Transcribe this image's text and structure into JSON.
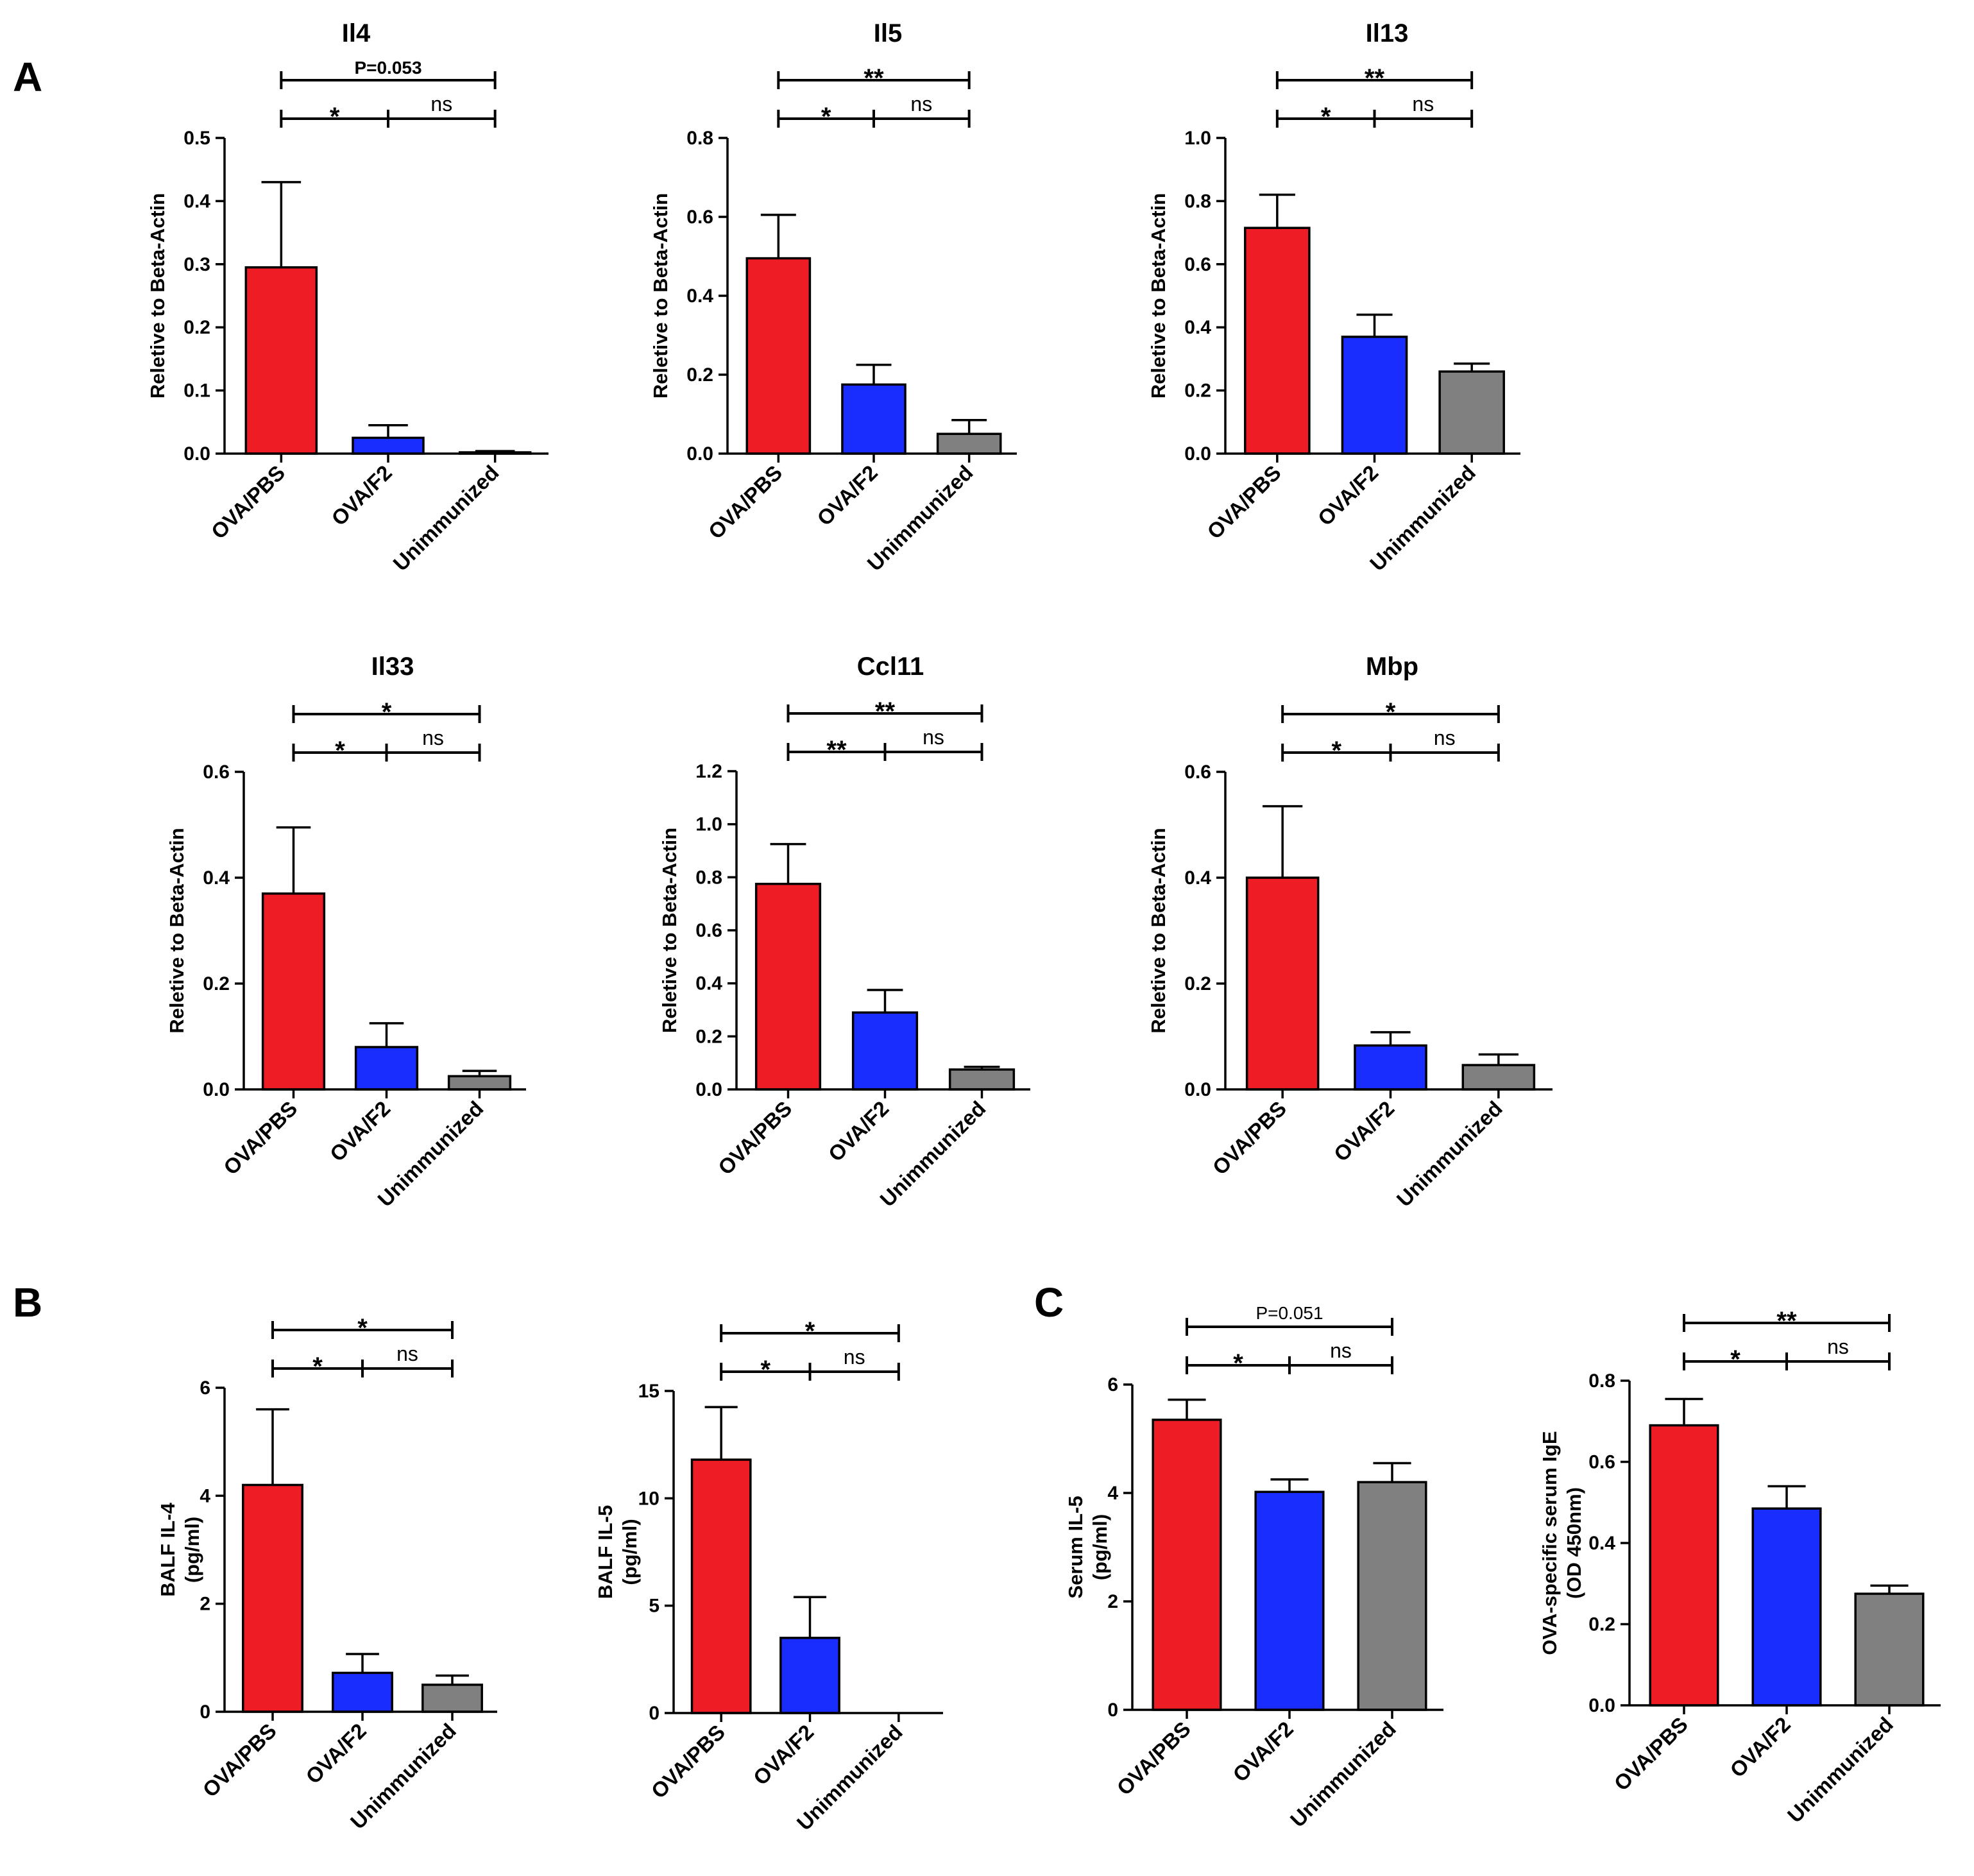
{
  "panel_labels": [
    "A",
    "B",
    "C"
  ],
  "colors": {
    "OVA/PBS": "#ee1c25",
    "OVA/F2": "#1a2dff",
    "Unimmunized": "#808080"
  },
  "chart_data": [
    {
      "type": "bar",
      "panel": "A",
      "title": "Il4",
      "ylabel": "Reletive to Beta-Actin",
      "categories": [
        "OVA/PBS",
        "OVA/F2",
        "Unimmunized"
      ],
      "values": [
        0.295,
        0.025,
        0.002
      ],
      "errors": [
        0.135,
        0.02,
        0.002
      ],
      "ylim": [
        0,
        0.5
      ],
      "yticks": [
        "0.0",
        "0.1",
        "0.2",
        "0.3",
        "0.4",
        "0.5"
      ],
      "comparisons": [
        {
          "label": "P=0.053",
          "type": "p",
          "from": 0,
          "to": 2,
          "level": 2
        },
        {
          "label": "*",
          "type": "sig",
          "from": 0,
          "to": 1,
          "level": 1
        },
        {
          "label": "ns",
          "type": "ns",
          "from": 1,
          "to": 2,
          "level": 1
        }
      ]
    },
    {
      "type": "bar",
      "panel": "A",
      "title": "Il5",
      "ylabel": "Reletive to Beta-Actin",
      "categories": [
        "OVA/PBS",
        "OVA/F2",
        "Unimmunized"
      ],
      "values": [
        0.495,
        0.175,
        0.05
      ],
      "errors": [
        0.11,
        0.05,
        0.035
      ],
      "ylim": [
        0,
        0.8
      ],
      "yticks": [
        "0.0",
        "0.2",
        "0.4",
        "0.6",
        "0.8"
      ],
      "comparisons": [
        {
          "label": "**",
          "type": "sig",
          "from": 0,
          "to": 2,
          "level": 2
        },
        {
          "label": "*",
          "type": "sig",
          "from": 0,
          "to": 1,
          "level": 1
        },
        {
          "label": "ns",
          "type": "ns",
          "from": 1,
          "to": 2,
          "level": 1
        }
      ]
    },
    {
      "type": "bar",
      "panel": "A",
      "title": "Il13",
      "ylabel": "Reletive to Beta-Actin",
      "categories": [
        "OVA/PBS",
        "OVA/F2",
        "Unimmunized"
      ],
      "values": [
        0.715,
        0.37,
        0.26
      ],
      "errors": [
        0.105,
        0.07,
        0.025
      ],
      "ylim": [
        0,
        1.0
      ],
      "yticks": [
        "0.0",
        "0.2",
        "0.4",
        "0.6",
        "0.8",
        "1.0"
      ],
      "comparisons": [
        {
          "label": "**",
          "type": "sig",
          "from": 0,
          "to": 2,
          "level": 2
        },
        {
          "label": "*",
          "type": "sig",
          "from": 0,
          "to": 1,
          "level": 1
        },
        {
          "label": "ns",
          "type": "ns",
          "from": 1,
          "to": 2,
          "level": 1
        }
      ]
    },
    {
      "type": "bar",
      "panel": "A",
      "title": "Il33",
      "ylabel": "Reletive to Beta-Actin",
      "categories": [
        "OVA/PBS",
        "OVA/F2",
        "Unimmunized"
      ],
      "values": [
        0.37,
        0.08,
        0.025
      ],
      "errors": [
        0.125,
        0.045,
        0.01
      ],
      "ylim": [
        0,
        0.6
      ],
      "yticks": [
        "0.0",
        "0.2",
        "0.4",
        "0.6"
      ],
      "comparisons": [
        {
          "label": "*",
          "type": "sig",
          "from": 0,
          "to": 2,
          "level": 2
        },
        {
          "label": "*",
          "type": "sig",
          "from": 0,
          "to": 1,
          "level": 1
        },
        {
          "label": "ns",
          "type": "ns",
          "from": 1,
          "to": 2,
          "level": 1
        }
      ]
    },
    {
      "type": "bar",
      "panel": "A",
      "title": "Ccl11",
      "ylabel": "Reletive to Beta-Actin",
      "categories": [
        "OVA/PBS",
        "OVA/F2",
        "Unimmunized"
      ],
      "values": [
        0.775,
        0.29,
        0.075
      ],
      "errors": [
        0.15,
        0.085,
        0.01
      ],
      "ylim": [
        0,
        1.2
      ],
      "yticks": [
        "0.0",
        "0.2",
        "0.4",
        "0.6",
        "0.8",
        "1.0",
        "1.2"
      ],
      "comparisons": [
        {
          "label": "**",
          "type": "sig",
          "from": 0,
          "to": 2,
          "level": 2
        },
        {
          "label": "**",
          "type": "sig",
          "from": 0,
          "to": 1,
          "level": 1
        },
        {
          "label": "ns",
          "type": "ns",
          "from": 1,
          "to": 2,
          "level": 1
        }
      ]
    },
    {
      "type": "bar",
      "panel": "A",
      "title": "Mbp",
      "ylabel": "Reletive to Beta-Actin",
      "categories": [
        "OVA/PBS",
        "OVA/F2",
        "Unimmunized"
      ],
      "values": [
        0.4,
        0.083,
        0.046
      ],
      "errors": [
        0.135,
        0.025,
        0.02
      ],
      "ylim": [
        0,
        0.6
      ],
      "yticks": [
        "0.0",
        "0.2",
        "0.4",
        "0.6"
      ],
      "comparisons": [
        {
          "label": "*",
          "type": "sig",
          "from": 0,
          "to": 2,
          "level": 2
        },
        {
          "label": "*",
          "type": "sig",
          "from": 0,
          "to": 1,
          "level": 1
        },
        {
          "label": "ns",
          "type": "ns",
          "from": 1,
          "to": 2,
          "level": 1
        }
      ]
    },
    {
      "type": "bar",
      "panel": "B",
      "title": "",
      "ylabel": [
        "BALF IL-4",
        "(pg/ml)"
      ],
      "categories": [
        "OVA/PBS",
        "OVA/F2",
        "Unimmunized"
      ],
      "values": [
        4.2,
        0.72,
        0.5
      ],
      "errors": [
        1.4,
        0.35,
        0.17
      ],
      "ylim": [
        0,
        6
      ],
      "yticks": [
        "0",
        "2",
        "4",
        "6"
      ],
      "comparisons": [
        {
          "label": "*",
          "type": "sig",
          "from": 0,
          "to": 2,
          "level": 2
        },
        {
          "label": "*",
          "type": "sig",
          "from": 0,
          "to": 1,
          "level": 1
        },
        {
          "label": "ns",
          "type": "ns",
          "from": 1,
          "to": 2,
          "level": 1
        }
      ]
    },
    {
      "type": "bar",
      "panel": "B",
      "title": "",
      "ylabel": [
        "BALF IL-5",
        "(pg/ml)"
      ],
      "categories": [
        "OVA/PBS",
        "OVA/F2",
        "Unimmunized"
      ],
      "values": [
        11.8,
        3.5,
        0.0
      ],
      "errors": [
        2.45,
        1.9,
        0.0
      ],
      "ylim": [
        0,
        15
      ],
      "yticks": [
        "0",
        "5",
        "10",
        "15"
      ],
      "comparisons": [
        {
          "label": "*",
          "type": "sig",
          "from": 0,
          "to": 2,
          "level": 2
        },
        {
          "label": "*",
          "type": "sig",
          "from": 0,
          "to": 1,
          "level": 1
        },
        {
          "label": "ns",
          "type": "ns",
          "from": 1,
          "to": 2,
          "level": 1
        }
      ]
    },
    {
      "type": "bar",
      "panel": "C",
      "title": "",
      "ylabel": [
        "Serum IL-5",
        "(pg/ml)"
      ],
      "categories": [
        "OVA/PBS",
        "OVA/F2",
        "Unimmunized"
      ],
      "values": [
        5.35,
        4.02,
        4.2
      ],
      "errors": [
        0.37,
        0.23,
        0.35
      ],
      "ylim": [
        0,
        6
      ],
      "yticks": [
        "0",
        "2",
        "4",
        "6"
      ],
      "comparisons": [
        {
          "label": "P=0.051",
          "type": "p-normal",
          "from": 0,
          "to": 2,
          "level": 2
        },
        {
          "label": "*",
          "type": "sig",
          "from": 0,
          "to": 1,
          "level": 1
        },
        {
          "label": "ns",
          "type": "ns",
          "from": 1,
          "to": 2,
          "level": 1
        }
      ]
    },
    {
      "type": "bar",
      "panel": "C",
      "title": "",
      "ylabel": [
        "OVA-specific serum IgE",
        "(OD 450nm)"
      ],
      "categories": [
        "OVA/PBS",
        "OVA/F2",
        "Unimmunized"
      ],
      "values": [
        0.69,
        0.485,
        0.275
      ],
      "errors": [
        0.065,
        0.055,
        0.02
      ],
      "ylim": [
        0,
        0.8
      ],
      "yticks": [
        "0.0",
        "0.2",
        "0.4",
        "0.6",
        "0.8"
      ],
      "comparisons": [
        {
          "label": "**",
          "type": "sig",
          "from": 0,
          "to": 2,
          "level": 2
        },
        {
          "label": "*",
          "type": "sig",
          "from": 0,
          "to": 1,
          "level": 1
        },
        {
          "label": "ns",
          "type": "ns",
          "from": 1,
          "to": 2,
          "level": 1
        }
      ]
    }
  ]
}
